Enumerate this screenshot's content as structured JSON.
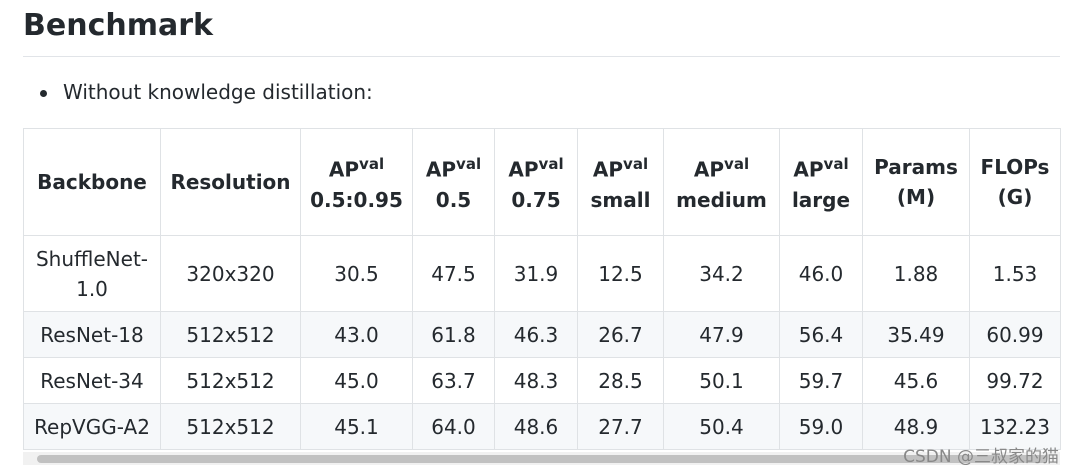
{
  "header": {
    "title": "Benchmark"
  },
  "bullet": "Without knowledge distillation:",
  "table": {
    "headers": [
      {
        "lines": [
          "Backbone"
        ]
      },
      {
        "lines": [
          "Resolution"
        ]
      },
      {
        "main": "AP",
        "sup": "val",
        "lines": [
          "0.5:0.95"
        ]
      },
      {
        "main": "AP",
        "sup": "val",
        "lines": [
          "0.5"
        ]
      },
      {
        "main": "AP",
        "sup": "val",
        "lines": [
          "0.75"
        ]
      },
      {
        "main": "AP",
        "sup": "val",
        "lines": [
          "small"
        ]
      },
      {
        "main": "AP",
        "sup": "val",
        "lines": [
          "medium"
        ]
      },
      {
        "main": "AP",
        "sup": "val",
        "lines": [
          "large"
        ]
      },
      {
        "lines": [
          "Params",
          "(M)"
        ]
      },
      {
        "lines": [
          "FLOPs",
          "(G)"
        ]
      }
    ],
    "rows": [
      [
        "ShuffleNet-1.0",
        "320x320",
        "30.5",
        "47.5",
        "31.9",
        "12.5",
        "34.2",
        "46.0",
        "1.88",
        "1.53"
      ],
      [
        "ResNet-18",
        "512x512",
        "43.0",
        "61.8",
        "46.3",
        "26.7",
        "47.9",
        "56.4",
        "35.49",
        "60.99"
      ],
      [
        "ResNet-34",
        "512x512",
        "45.0",
        "63.7",
        "48.3",
        "28.5",
        "50.1",
        "59.7",
        "45.6",
        "99.72"
      ],
      [
        "RepVGG-A2",
        "512x512",
        "45.1",
        "64.0",
        "48.6",
        "27.7",
        "50.4",
        "59.0",
        "48.9",
        "132.23"
      ]
    ]
  },
  "watermark": "CSDN @三叔家的猫"
}
